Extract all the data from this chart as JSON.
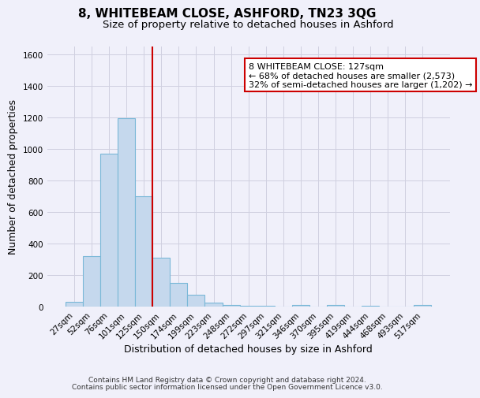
{
  "title": "8, WHITEBEAM CLOSE, ASHFORD, TN23 3QG",
  "subtitle": "Size of property relative to detached houses in Ashford",
  "xlabel": "Distribution of detached houses by size in Ashford",
  "ylabel": "Number of detached properties",
  "bar_labels": [
    "27sqm",
    "52sqm",
    "76sqm",
    "101sqm",
    "125sqm",
    "150sqm",
    "174sqm",
    "199sqm",
    "223sqm",
    "248sqm",
    "272sqm",
    "297sqm",
    "321sqm",
    "346sqm",
    "370sqm",
    "395sqm",
    "419sqm",
    "444sqm",
    "468sqm",
    "493sqm",
    "517sqm"
  ],
  "bar_values": [
    30,
    320,
    970,
    1195,
    700,
    310,
    150,
    75,
    25,
    10,
    5,
    3,
    2,
    12,
    2,
    10,
    2,
    3,
    2,
    2,
    10
  ],
  "bar_color": "#c5d8ed",
  "bar_edge_color": "#7ab8d8",
  "vline_color": "#cc0000",
  "vline_x_idx": 4,
  "annotation_title": "8 WHITEBEAM CLOSE: 127sqm",
  "annotation_line1": "← 68% of detached houses are smaller (2,573)",
  "annotation_line2": "32% of semi-detached houses are larger (1,202) →",
  "annotation_box_color": "#ffffff",
  "annotation_box_edge": "#cc0000",
  "ylim": [
    0,
    1650
  ],
  "yticks": [
    0,
    200,
    400,
    600,
    800,
    1000,
    1200,
    1400,
    1600
  ],
  "footer1": "Contains HM Land Registry data © Crown copyright and database right 2024.",
  "footer2": "Contains public sector information licensed under the Open Government Licence v3.0.",
  "bg_color": "#f0f0fa",
  "grid_color": "#d0d0e0",
  "title_fontsize": 11,
  "subtitle_fontsize": 9.5,
  "axis_label_fontsize": 9,
  "tick_fontsize": 7.5,
  "footer_fontsize": 6.5
}
